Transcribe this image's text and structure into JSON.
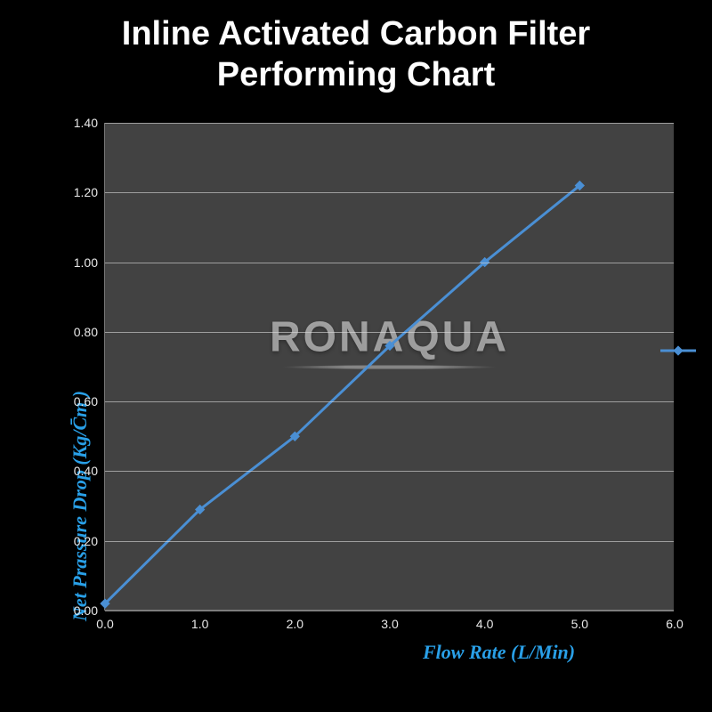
{
  "title_line1": "Inline Activated Carbon Filter",
  "title_line2": "Performing Chart",
  "chart": {
    "type": "line",
    "background_color": "#000000",
    "plot_bg": "rgba(120,120,120,0.55)",
    "grid_color": "rgba(220,220,220,0.6)",
    "line_color": "#4a8fd4",
    "marker_color": "#4a8fd4",
    "marker_style": "diamond",
    "marker_size": 8,
    "line_width": 3,
    "xlabel": "Flow Rate (L/Min)",
    "ylabel": "Net Prassure Drop (Kg/C̄m )",
    "label_color": "#29a0e8",
    "label_fontsize": 22,
    "tick_color": "#e8e8e8",
    "tick_fontsize": 14,
    "xlim": [
      0.0,
      6.0
    ],
    "ylim": [
      0.0,
      1.4
    ],
    "xticks": [
      "0.0",
      "1.0",
      "2.0",
      "3.0",
      "4.0",
      "5.0",
      "6.0"
    ],
    "yticks": [
      "0.00",
      "0.20",
      "0.40",
      "0.60",
      "0.80",
      "1.00",
      "1.20",
      "1.40"
    ],
    "x_values": [
      0.0,
      1.0,
      2.0,
      3.0,
      4.0,
      5.0
    ],
    "y_values": [
      0.02,
      0.29,
      0.5,
      0.76,
      1.0,
      1.22
    ],
    "watermark": "RONAQUA",
    "watermark_color": "rgba(230,230,230,0.6)",
    "watermark_fontsize": 48
  }
}
